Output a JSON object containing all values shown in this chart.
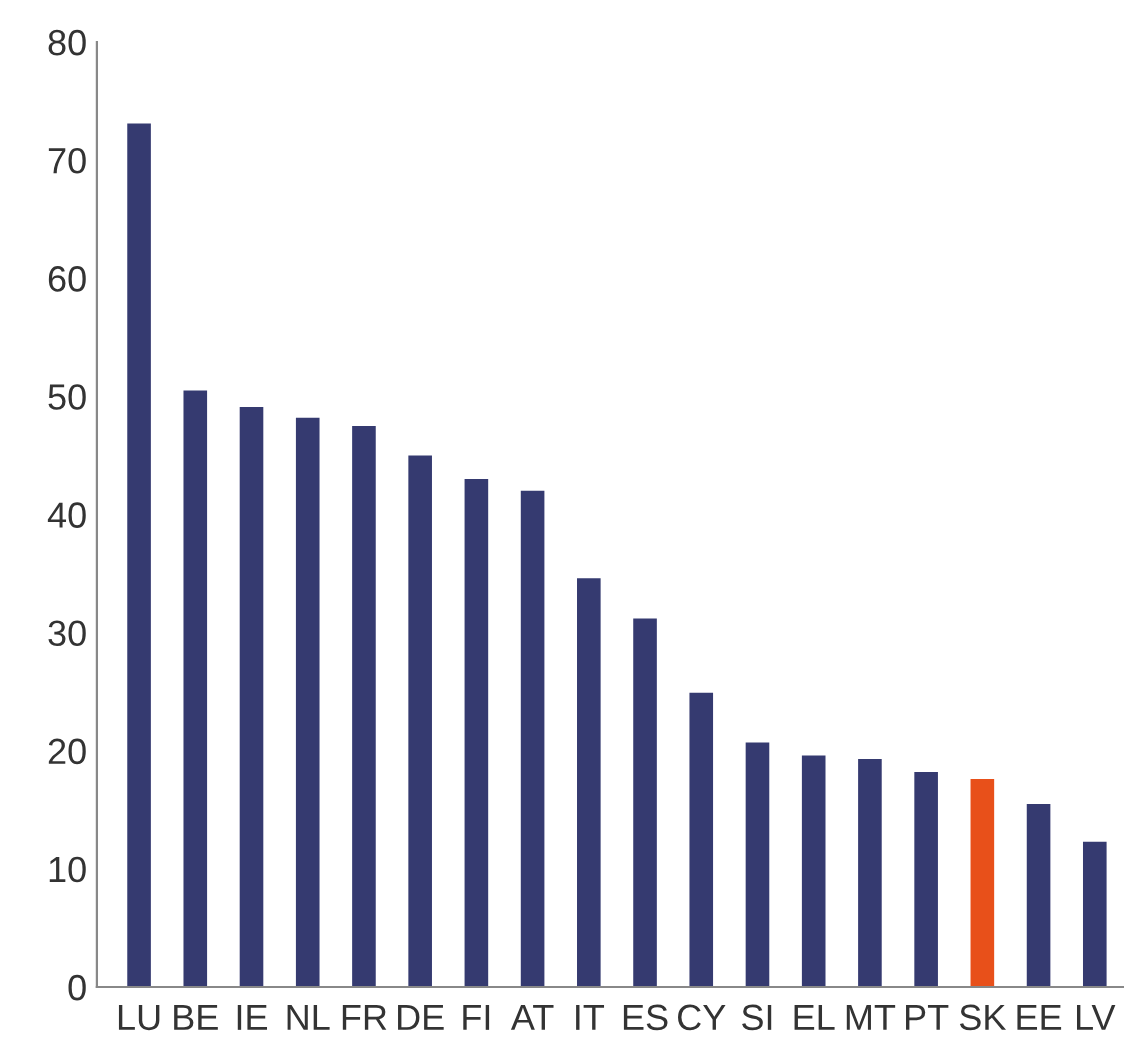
{
  "chart_data": {
    "type": "bar",
    "categories": [
      "LU",
      "BE",
      "IE",
      "NL",
      "FR",
      "DE",
      "FI",
      "AT",
      "IT",
      "ES",
      "CY",
      "SI",
      "EL",
      "MT",
      "PT",
      "SK",
      "EE",
      "LV"
    ],
    "values": [
      73.1,
      50.5,
      49.1,
      48.2,
      47.5,
      45.0,
      43.0,
      42.0,
      34.6,
      31.2,
      24.9,
      20.7,
      19.6,
      19.3,
      18.2,
      17.6,
      15.5,
      12.3
    ],
    "colors": [
      "#353a70",
      "#353a70",
      "#353a70",
      "#353a70",
      "#353a70",
      "#353a70",
      "#353a70",
      "#353a70",
      "#353a70",
      "#353a70",
      "#353a70",
      "#353a70",
      "#353a70",
      "#353a70",
      "#353a70",
      "#e8501a",
      "#353a70",
      "#353a70"
    ],
    "ylim": [
      0,
      80
    ],
    "yticks": [
      0,
      10,
      20,
      30,
      40,
      50,
      60,
      70,
      80
    ],
    "grid": false,
    "legend": false
  }
}
